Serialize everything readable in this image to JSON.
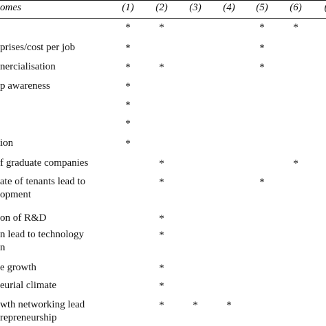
{
  "header": {
    "left": "omes",
    "columns": [
      "(1)",
      "(2)",
      "(3)",
      "(4)",
      "(5)",
      "(6)",
      "("
    ]
  },
  "rows": [
    {
      "lines": [
        "",
        ""
      ],
      "stars": [
        true,
        true,
        false,
        false,
        true,
        true,
        false
      ]
    },
    {
      "lines": [
        "prises/cost per job"
      ],
      "stars": [
        true,
        false,
        false,
        false,
        true,
        false,
        false
      ]
    },
    {
      "lines": [
        "nercialisation"
      ],
      "stars": [
        true,
        true,
        false,
        false,
        true,
        false,
        false
      ]
    },
    {
      "lines": [
        "p awareness"
      ],
      "stars": [
        true,
        false,
        false,
        false,
        false,
        false,
        false
      ]
    },
    {
      "lines": [
        ""
      ],
      "stars": [
        true,
        false,
        false,
        false,
        false,
        false,
        false
      ]
    },
    {
      "lines": [
        ""
      ],
      "stars": [
        true,
        false,
        false,
        false,
        false,
        false,
        false
      ]
    },
    {
      "lines": [
        "ion"
      ],
      "stars": [
        true,
        false,
        false,
        false,
        false,
        false,
        false
      ]
    },
    {
      "lines": [
        "f graduate companies"
      ],
      "stars": [
        false,
        true,
        false,
        false,
        false,
        true,
        false
      ]
    },
    {
      "lines": [
        "ate of tenants lead to",
        "opment"
      ],
      "stars": [
        false,
        true,
        false,
        false,
        true,
        false,
        false
      ]
    },
    {
      "lines": [
        "on of R&D"
      ],
      "stars": [
        false,
        true,
        false,
        false,
        false,
        false,
        false
      ]
    },
    {
      "lines": [
        "n lead to technology",
        "n"
      ],
      "stars": [
        false,
        true,
        false,
        false,
        false,
        false,
        false
      ]
    },
    {
      "lines": [
        "e growth"
      ],
      "stars": [
        false,
        true,
        false,
        false,
        false,
        false,
        false
      ]
    },
    {
      "lines": [
        "eurial climate"
      ],
      "stars": [
        false,
        true,
        false,
        false,
        false,
        false,
        false
      ]
    },
    {
      "lines": [
        "wth networking lead",
        "repreneurship"
      ],
      "stars": [
        false,
        true,
        true,
        true,
        false,
        false,
        false
      ]
    }
  ]
}
